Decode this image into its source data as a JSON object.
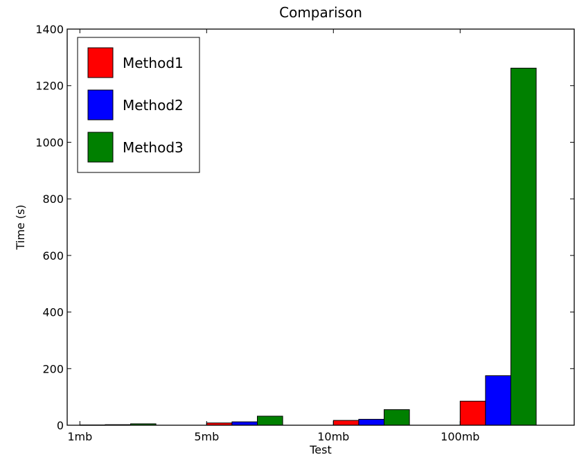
{
  "chart_data": {
    "type": "bar",
    "title": "Comparison",
    "xlabel": "Test",
    "ylabel": "Time (s)",
    "categories": [
      "1mb",
      "5mb",
      "10mb",
      "100mb"
    ],
    "ylim": [
      0,
      1400
    ],
    "yticks": [
      0,
      200,
      400,
      600,
      800,
      1000,
      1200,
      1400
    ],
    "ytick_labels": [
      "0",
      "200",
      "400",
      "600",
      "800",
      "1000",
      "1200",
      "1400"
    ],
    "grid": false,
    "legend_position": "top-left",
    "series": [
      {
        "name": "Method1",
        "color": "#ff0000",
        "values": [
          1,
          8,
          17,
          85
        ]
      },
      {
        "name": "Method2",
        "color": "#0000ff",
        "values": [
          2,
          12,
          21,
          175
        ]
      },
      {
        "name": "Method3",
        "color": "#008000",
        "values": [
          5,
          32,
          55,
          1262
        ]
      }
    ]
  }
}
